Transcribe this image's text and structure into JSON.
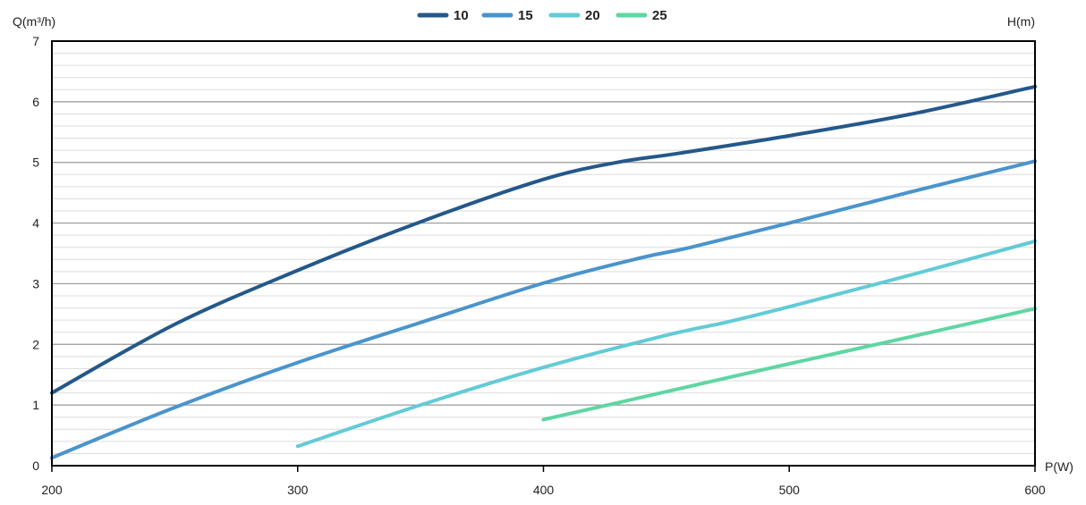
{
  "chart_data": {
    "type": "line",
    "title": "",
    "xlabel": "P(W)",
    "ylabel": "Q(m³/h)",
    "y2label": "H(m)",
    "xlim": [
      200,
      600
    ],
    "ylim": [
      0,
      7
    ],
    "x_ticks": [
      "200",
      "300",
      "400",
      "500",
      "600"
    ],
    "y_ticks": [
      "0",
      "1",
      "2",
      "3",
      "4",
      "5",
      "6",
      "7"
    ],
    "grid": "horizontal",
    "legend_position": "top-center",
    "series": [
      {
        "name": "10",
        "color": "#24588a",
        "points": [
          [
            200,
            1.2
          ],
          [
            250,
            2.33
          ],
          [
            300,
            3.22
          ],
          [
            350,
            4.02
          ],
          [
            400,
            4.72
          ],
          [
            430,
            5.0
          ],
          [
            455,
            5.15
          ],
          [
            500,
            5.44
          ],
          [
            550,
            5.8
          ],
          [
            600,
            6.25
          ]
        ]
      },
      {
        "name": "15",
        "color": "#4a94cc",
        "points": [
          [
            200,
            0.13
          ],
          [
            250,
            0.96
          ],
          [
            300,
            1.7
          ],
          [
            350,
            2.36
          ],
          [
            400,
            3.01
          ],
          [
            440,
            3.43
          ],
          [
            460,
            3.6
          ],
          [
            500,
            4.0
          ],
          [
            550,
            4.52
          ],
          [
            600,
            5.02
          ]
        ]
      },
      {
        "name": "20",
        "color": "#62cbd6",
        "points": [
          [
            300,
            0.32
          ],
          [
            350,
            1.0
          ],
          [
            400,
            1.62
          ],
          [
            450,
            2.15
          ],
          [
            475,
            2.37
          ],
          [
            500,
            2.62
          ],
          [
            550,
            3.15
          ],
          [
            600,
            3.7
          ]
        ]
      },
      {
        "name": "25",
        "color": "#5fd6a4",
        "points": [
          [
            400,
            0.76
          ],
          [
            450,
            1.22
          ],
          [
            500,
            1.68
          ],
          [
            550,
            2.13
          ],
          [
            600,
            2.59
          ]
        ]
      }
    ]
  }
}
